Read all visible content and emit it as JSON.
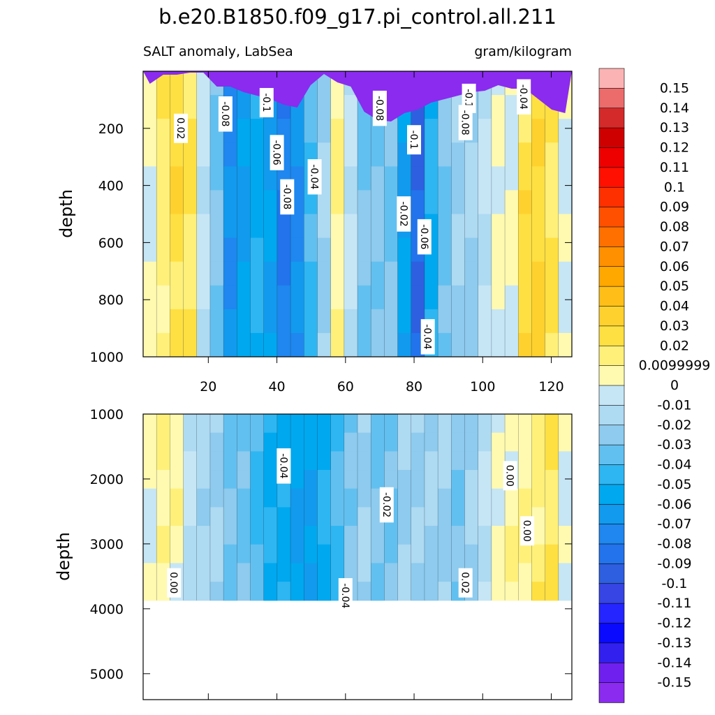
{
  "title": "b.e20.B1850.f09_g17.pi_control.all.211",
  "subtitle_left": "SALT anomaly, LabSea",
  "subtitle_right": "gram/kilogram",
  "chart_data": [
    {
      "type": "heatmap",
      "panel": "upper",
      "xlabel": "",
      "ylabel": "depth",
      "xlim": [
        1,
        126
      ],
      "ylim": [
        1000,
        0
      ],
      "xticks": [
        "20",
        "40",
        "60",
        "80",
        "100",
        "120"
      ],
      "yticks": [
        "200",
        "400",
        "600",
        "800",
        "1000"
      ],
      "x": [
        2,
        6,
        10,
        14,
        18,
        22,
        26,
        30,
        34,
        38,
        42,
        46,
        50,
        54,
        58,
        62,
        66,
        70,
        74,
        78,
        82,
        86,
        90,
        94,
        98,
        102,
        106,
        110,
        114,
        118,
        122,
        126
      ],
      "column_anomaly": [
        0.0,
        0.015,
        0.025,
        0.02,
        -0.01,
        -0.03,
        -0.07,
        -0.06,
        -0.05,
        -0.06,
        -0.08,
        -0.07,
        -0.04,
        -0.02,
        0.01,
        -0.01,
        -0.03,
        -0.03,
        -0.03,
        -0.06,
        -0.09,
        -0.05,
        -0.03,
        -0.02,
        -0.02,
        -0.01,
        0.0,
        0.0,
        0.025,
        0.03,
        0.02,
        0.0
      ],
      "contour_labels": [
        {
          "text": "0.02",
          "x": 12,
          "y": 200
        },
        {
          "text": "-0.08",
          "x": 25,
          "y": 150
        },
        {
          "text": "-0.1",
          "x": 37,
          "y": 110
        },
        {
          "text": "-0.08",
          "x": 70,
          "y": 130
        },
        {
          "text": "-0.1",
          "x": 96,
          "y": 95
        },
        {
          "text": "-0.04",
          "x": 112,
          "y": 90
        },
        {
          "text": "-0.08",
          "x": 95,
          "y": 180
        },
        {
          "text": "-0.1",
          "x": 80,
          "y": 240
        },
        {
          "text": "-0.06",
          "x": 40,
          "y": 285
        },
        {
          "text": "-0.04",
          "x": 51,
          "y": 370
        },
        {
          "text": "-0.08",
          "x": 43,
          "y": 440
        },
        {
          "text": "-0.02",
          "x": 77,
          "y": 500
        },
        {
          "text": "-0.06",
          "x": 83,
          "y": 580
        },
        {
          "text": "-0.04",
          "x": 84,
          "y": 930
        }
      ]
    },
    {
      "type": "heatmap",
      "panel": "lower",
      "xlabel": "",
      "ylabel": "depth",
      "xlim": [
        1,
        126
      ],
      "ylim": [
        5400,
        1000
      ],
      "yticks": [
        "1000",
        "2000",
        "3000",
        "4000",
        "5000"
      ],
      "column_anomaly": [
        0.0,
        0.01,
        0.005,
        -0.01,
        -0.02,
        -0.02,
        -0.03,
        -0.03,
        -0.04,
        -0.05,
        -0.05,
        -0.06,
        -0.06,
        -0.05,
        -0.04,
        -0.03,
        -0.02,
        -0.03,
        -0.03,
        -0.02,
        -0.02,
        -0.02,
        -0.02,
        -0.03,
        -0.02,
        -0.01,
        0.0,
        0.005,
        0.01,
        0.015,
        0.02,
        0.0
      ],
      "data_bottom_depth": 3870,
      "contour_labels": [
        {
          "text": "0.00",
          "x": 10,
          "y": 3600
        },
        {
          "text": "-0.04",
          "x": 42,
          "y": 1800
        },
        {
          "text": "-0.02",
          "x": 72,
          "y": 2400
        },
        {
          "text": "0.00",
          "x": 108,
          "y": 1950
        },
        {
          "text": "0.00",
          "x": 113,
          "y": 2800
        },
        {
          "text": "-0.04",
          "x": 60,
          "y": 3800
        },
        {
          "text": "0.02",
          "x": 95,
          "y": 3600
        }
      ]
    }
  ],
  "legend": {
    "labels": [
      "0.15",
      "0.14",
      "0.13",
      "0.12",
      "0.11",
      "0.1",
      "0.09",
      "0.08",
      "0.07",
      "0.06",
      "0.05",
      "0.04",
      "0.03",
      "0.02",
      "0.0099999",
      "0",
      "-0.01",
      "-0.02",
      "-0.03",
      "-0.04",
      "-0.05",
      "-0.06",
      "-0.07",
      "-0.08",
      "-0.09",
      "-0.1",
      "-0.11",
      "-0.12",
      "-0.13",
      "-0.14",
      "-0.15"
    ],
    "colors": [
      "#fbb3b3",
      "#ec6b6b",
      "#d42a2a",
      "#cf0000",
      "#ee0000",
      "#ff1000",
      "#ff3000",
      "#ff5000",
      "#ff7000",
      "#ff9000",
      "#ffa800",
      "#ffbf18",
      "#ffd12e",
      "#ffe042",
      "#fff07a",
      "#fffab0",
      "#c6e6f6",
      "#aedaf2",
      "#8ecbee",
      "#62c0f0",
      "#2eb6f2",
      "#00a8ef",
      "#129aee",
      "#1f87ef",
      "#2273ec",
      "#2e5fe0",
      "#3645e4",
      "#2425ff",
      "#0a0aff",
      "#3220ee",
      "#7020ee",
      "#8a2bef"
    ]
  }
}
